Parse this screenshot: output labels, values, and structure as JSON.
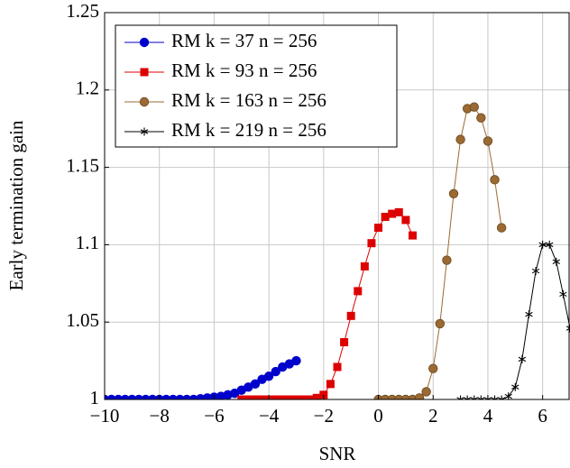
{
  "chart_data": {
    "type": "line",
    "x_label": "SNR",
    "y_label": "Early termination gain",
    "xlim": [
      -10,
      7
    ],
    "ylim": [
      1,
      1.25
    ],
    "xticks": [
      {
        "value": -10,
        "label": "−10"
      },
      {
        "value": -8,
        "label": "−8"
      },
      {
        "value": -6,
        "label": "−6"
      },
      {
        "value": -4,
        "label": "−4"
      },
      {
        "value": -2,
        "label": "−2"
      },
      0,
      2,
      4,
      6
    ],
    "yticks": [
      1,
      1.05,
      1.1,
      1.15,
      1.2,
      1.25
    ],
    "grid": true,
    "legend": "upper left",
    "series": [
      {
        "name": "RM k = 37 n = 256",
        "color": "#0000cc",
        "marker": "circle",
        "x": [
          -10,
          -9.75,
          -9.5,
          -9.25,
          -9,
          -8.75,
          -8.5,
          -8.25,
          -8,
          -7.75,
          -7.5,
          -7.25,
          -7,
          -6.75,
          -6.5,
          -6.25,
          -6,
          -5.75,
          -5.5,
          -5.25,
          -5,
          -4.75,
          -4.5,
          -4.25,
          -4,
          -3.75,
          -3.5,
          -3.25,
          -3
        ],
        "values": [
          1,
          1,
          1,
          1,
          1,
          1,
          1,
          1,
          1,
          1,
          1,
          1,
          1,
          1,
          1.0005,
          1.001,
          1.0015,
          1.002,
          1.003,
          1.004,
          1.006,
          1.008,
          1.01,
          1.013,
          1.015,
          1.018,
          1.021,
          1.023,
          1.025
        ]
      },
      {
        "name": "RM k = 93 n = 256",
        "color": "#dd0000",
        "marker": "square",
        "x": [
          -5,
          -4.75,
          -4.5,
          -4.25,
          -4,
          -3.75,
          -3.5,
          -3.25,
          -3,
          -2.75,
          -2.5,
          -2.25,
          -2,
          -1.75,
          -1.5,
          -1.25,
          -1,
          -0.75,
          -0.5,
          -0.25,
          0,
          0.25,
          0.5,
          0.75,
          1,
          1.25
        ],
        "values": [
          1,
          1,
          1,
          1,
          1,
          1,
          1,
          1,
          1,
          1,
          1,
          1.001,
          1.003,
          1.01,
          1.021,
          1.037,
          1.054,
          1.07,
          1.086,
          1.101,
          1.111,
          1.118,
          1.12,
          1.121,
          1.116,
          1.106
        ]
      },
      {
        "name": "RM k = 163 n = 256",
        "color": "#9a6a32",
        "marker": "circle",
        "x": [
          0,
          0.25,
          0.5,
          0.75,
          1,
          1.25,
          1.5,
          1.75,
          2,
          2.25,
          2.5,
          2.75,
          3,
          3.25,
          3.5,
          3.75,
          4,
          4.25,
          4.5
        ],
        "values": [
          1,
          1,
          1,
          1,
          1,
          1,
          1.001,
          1.005,
          1.02,
          1.049,
          1.09,
          1.133,
          1.168,
          1.188,
          1.189,
          1.182,
          1.167,
          1.142,
          1.111
        ]
      },
      {
        "name": "RM k = 219 n = 256",
        "color": "#000000",
        "marker": "star",
        "x": [
          3,
          3.25,
          3.5,
          3.75,
          4,
          4.25,
          4.5,
          4.75,
          5,
          5.25,
          5.5,
          5.75,
          6,
          6.25,
          6.5,
          6.75,
          7
        ],
        "values": [
          1,
          1,
          1,
          1,
          1,
          1,
          1,
          1.002,
          1.008,
          1.026,
          1.055,
          1.083,
          1.1,
          1.1,
          1.089,
          1.068,
          1.046
        ]
      }
    ]
  }
}
